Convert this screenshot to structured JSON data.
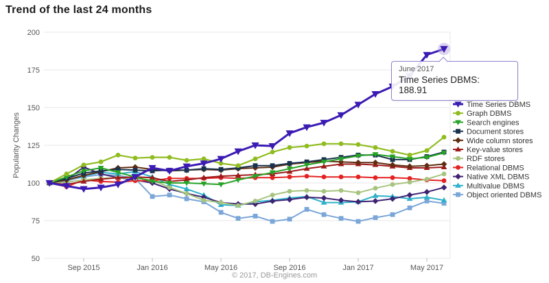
{
  "title": "Trend of the last 24 months",
  "footer": "© 2017, DB-Engines.com",
  "tooltip": {
    "date": "June 2017",
    "label": "Time Series DBMS: 188.91"
  },
  "chart_data": {
    "type": "line",
    "title": "Trend of the last 24 months",
    "xlabel": "",
    "ylabel": "Popularity Changes",
    "ylim": [
      50,
      200
    ],
    "yticks": [
      200,
      175,
      150,
      125,
      100,
      75,
      50
    ],
    "grid": "horizontal",
    "legend_position": "right",
    "x_tick_labels": [
      "Sep 2015",
      "Jan 2016",
      "May 2016",
      "Sep 2016",
      "Jan 2017",
      "May 2017"
    ],
    "x_tick_indices": [
      2,
      6,
      10,
      14,
      18,
      22
    ],
    "categories": [
      "Jul 2015",
      "Aug 2015",
      "Sep 2015",
      "Oct 2015",
      "Nov 2015",
      "Dec 2015",
      "Jan 2016",
      "Feb 2016",
      "Mar 2016",
      "Apr 2016",
      "May 2016",
      "Jun 2016",
      "Jul 2016",
      "Aug 2016",
      "Sep 2016",
      "Oct 2016",
      "Nov 2016",
      "Dec 2016",
      "Jan 2017",
      "Feb 2017",
      "Mar 2017",
      "Apr 2017",
      "May 2017",
      "Jun 2017"
    ],
    "highlight": {
      "series": "Time Series DBMS",
      "category": "Jun 2017",
      "value": 188.91,
      "halo_color": "#b3a0e0"
    },
    "series": [
      {
        "name": "Time Series DBMS",
        "color": "#3b1bb3",
        "marker": "triangle-down",
        "line_width": 3,
        "values": [
          100,
          98,
          96,
          97,
          99,
          104,
          110,
          108,
          111,
          113,
          116,
          121,
          125,
          124.5,
          133,
          137,
          140,
          145,
          152,
          159,
          164,
          171,
          185,
          188.91
        ]
      },
      {
        "name": "Graph DBMS",
        "color": "#8fbc1f",
        "marker": "circle",
        "line_width": 2.2,
        "values": [
          100,
          106,
          112,
          114,
          118.5,
          116.5,
          117,
          117,
          115,
          116,
          113,
          111.5,
          116,
          120.5,
          123.5,
          124.5,
          126,
          126,
          125.5,
          123.5,
          121,
          118.5,
          121.5,
          130.4
        ]
      },
      {
        "name": "Search engines",
        "color": "#27a327",
        "marker": "triangle-down",
        "line_width": 2,
        "values": [
          100,
          104,
          108,
          110,
          107,
          104,
          101,
          100,
          100,
          99.5,
          99,
          102,
          104.5,
          107,
          109.5,
          112,
          114,
          116,
          118,
          119,
          117.5,
          116,
          117,
          120
        ]
      },
      {
        "name": "Document stores",
        "color": "#18324e",
        "marker": "square",
        "line_width": 2,
        "values": [
          100,
          103,
          106.5,
          108,
          109,
          108.5,
          108,
          108.5,
          108.5,
          109.5,
          109,
          110,
          111.5,
          111.5,
          113,
          114,
          115.5,
          117,
          118.5,
          118.5,
          115.5,
          115.5,
          117.5,
          120.5
        ]
      },
      {
        "name": "Wide column stores",
        "color": "#5f2c10",
        "marker": "diamond",
        "line_width": 2,
        "values": [
          100,
          102,
          105,
          107.5,
          110,
          110.5,
          109,
          108,
          108.5,
          109,
          108.5,
          109.5,
          110,
          110.5,
          112.5,
          113.5,
          114.5,
          114,
          113.5,
          113.5,
          112,
          111,
          111.5,
          112.5
        ]
      },
      {
        "name": "Key-value stores",
        "color": "#9e1a1a",
        "marker": "triangle-up",
        "line_width": 2,
        "values": [
          100,
          99,
          101,
          102.5,
          103.5,
          104,
          103.5,
          101,
          102,
          103.5,
          104.5,
          105,
          105.5,
          106,
          107.5,
          109.5,
          111,
          112.5,
          112.5,
          112,
          111,
          110,
          110,
          110.5
        ]
      },
      {
        "name": "RDF stores",
        "color": "#a6c47e",
        "marker": "circle",
        "line_width": 2,
        "values": [
          100,
          100.5,
          102,
          103,
          103.5,
          103,
          102,
          97,
          93,
          88.5,
          87,
          85,
          88,
          92,
          94.5,
          95,
          94.5,
          95,
          93.5,
          96.5,
          99,
          100.5,
          102.5,
          106
        ]
      },
      {
        "name": "Relational DBMS",
        "color": "#e42222",
        "marker": "circle",
        "line_width": 2,
        "values": [
          100,
          97.5,
          102,
          101,
          100.5,
          101.5,
          101.5,
          103,
          103,
          103,
          103.5,
          103,
          103.5,
          103.5,
          104,
          104.5,
          104,
          104,
          104,
          103.5,
          103.5,
          103,
          102,
          101.5
        ]
      },
      {
        "name": "Native XML DBMS",
        "color": "#3f2373",
        "marker": "diamond",
        "line_width": 2,
        "values": [
          100,
          102,
          110.5,
          106,
          103.5,
          102,
          100,
          96,
          93,
          90.5,
          87,
          86,
          86,
          88,
          89,
          90.5,
          90,
          88.5,
          87.5,
          88,
          89.5,
          92,
          94,
          97
        ]
      },
      {
        "name": "Multivalue DBMS",
        "color": "#2fb1cb",
        "marker": "triangle-up",
        "line_width": 2,
        "values": [
          100,
          102,
          104.5,
          107,
          106,
          107.5,
          104,
          99,
          96,
          92,
          85.5,
          85,
          87.5,
          88.5,
          90,
          91,
          87,
          87,
          87.5,
          91.5,
          91,
          89.5,
          90.5,
          88.5
        ]
      },
      {
        "name": "Object oriented DBMS",
        "color": "#7aa6d8",
        "marker": "square",
        "line_width": 2,
        "values": [
          100,
          101.5,
          104,
          105.5,
          105,
          103,
          91,
          92,
          89.5,
          87.5,
          80.5,
          76.5,
          78,
          74.5,
          76,
          82.5,
          79,
          76.5,
          74.5,
          77,
          79,
          83.5,
          88,
          86.5
        ]
      }
    ]
  }
}
